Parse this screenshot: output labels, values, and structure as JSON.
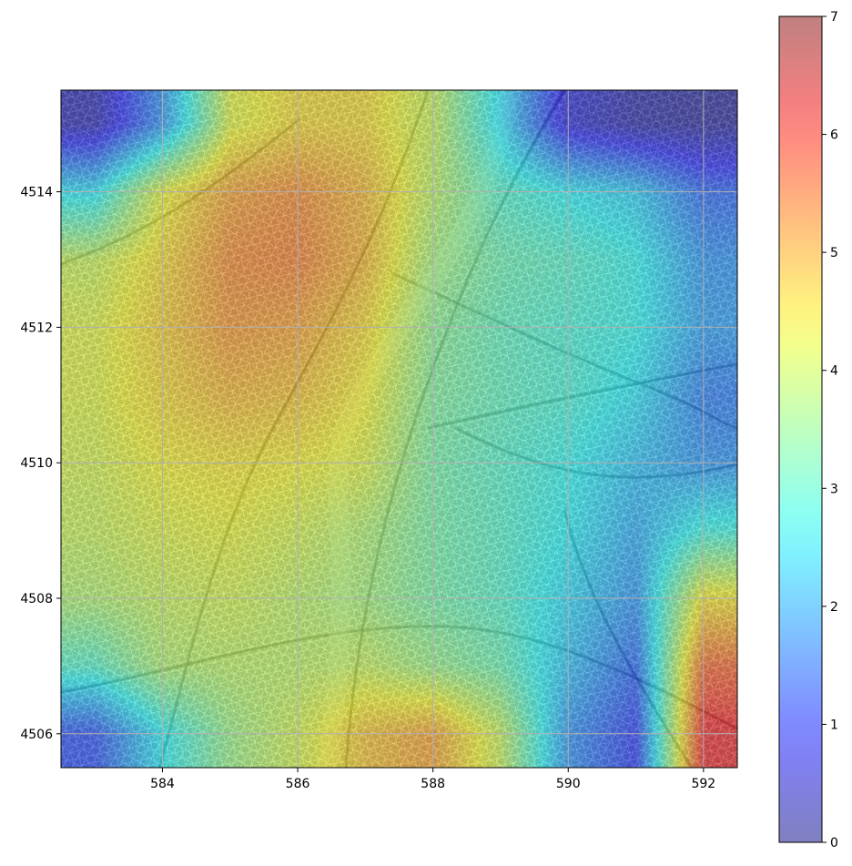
{
  "chart_data": {
    "type": "heatmap",
    "title": "",
    "xlabel": "",
    "ylabel": "",
    "xlim": [
      582.5,
      592.5
    ],
    "ylim": [
      4505.5,
      4515.5
    ],
    "x_ticks": [
      584,
      586,
      588,
      590,
      592
    ],
    "y_ticks": [
      4506,
      4508,
      4510,
      4512,
      4514
    ],
    "x_tick_labels": [
      "584",
      "586",
      "588",
      "590",
      "592"
    ],
    "y_tick_labels": [
      "4506",
      "4508",
      "4510",
      "4512",
      "4514"
    ],
    "grid": true,
    "background": "street map",
    "colormap": "jet",
    "overlay_alpha": 0.45,
    "colorbar": {
      "range": [
        0,
        7
      ],
      "ticks": [
        0,
        1,
        2,
        3,
        4,
        5,
        6,
        7
      ],
      "tick_labels": [
        "0",
        "1",
        "2",
        "3",
        "4",
        "5",
        "6",
        "7"
      ],
      "placement": "right"
    },
    "x": [
      583,
      584,
      585,
      586,
      587,
      588,
      589,
      590,
      591,
      592
    ],
    "y": [
      4515,
      4514,
      4513,
      4512,
      4511,
      4510,
      4509,
      4508,
      4507,
      4506
    ],
    "z": [
      [
        0.3,
        1.8,
        4.2,
        4.6,
        4.6,
        4.0,
        2.5,
        0.6,
        0.2,
        0.1
      ],
      [
        2.5,
        4.3,
        5.1,
        5.3,
        4.9,
        3.9,
        3.0,
        2.6,
        2.3,
        1.4
      ],
      [
        4.0,
        4.6,
        5.3,
        5.4,
        4.9,
        3.7,
        3.2,
        3.0,
        2.7,
        1.8
      ],
      [
        4.2,
        4.7,
        5.2,
        5.1,
        4.6,
        3.5,
        3.1,
        2.9,
        2.7,
        1.9
      ],
      [
        4.2,
        4.6,
        4.9,
        4.8,
        4.4,
        3.4,
        3.1,
        2.9,
        2.5,
        1.6
      ],
      [
        4.1,
        4.4,
        4.5,
        4.4,
        4.2,
        3.3,
        3.0,
        2.7,
        2.2,
        1.8
      ],
      [
        4.0,
        4.2,
        4.3,
        4.1,
        3.8,
        3.3,
        3.0,
        2.6,
        2.0,
        2.8
      ],
      [
        3.8,
        4.0,
        4.1,
        3.9,
        3.7,
        3.3,
        3.0,
        2.4,
        1.8,
        4.5
      ],
      [
        3.0,
        3.8,
        3.9,
        3.9,
        4.0,
        3.6,
        3.2,
        2.2,
        1.4,
        5.6
      ],
      [
        1.2,
        2.6,
        3.6,
        4.1,
        4.8,
        5.1,
        4.0,
        1.8,
        1.0,
        6.2
      ]
    ]
  }
}
